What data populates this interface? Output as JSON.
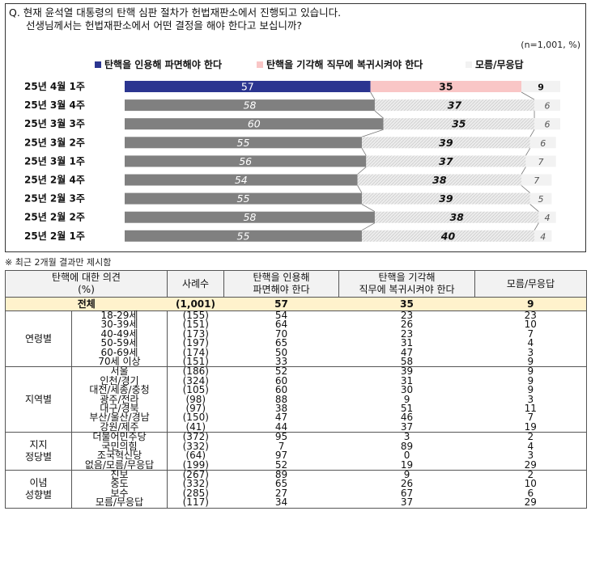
{
  "question": {
    "line1": "Q. 현재 윤석열 대통령의 탄핵 심판 절차가 헌법재판소에서 진행되고 있습니다.",
    "line2": "선생님께서는 헌법재판소에서 어떤 결정을 해야 한다고 보십니까?"
  },
  "unit_note": "(n=1,001, %)",
  "chart_data": {
    "type": "bar",
    "stacked": true,
    "orientation": "horizontal",
    "categories": [
      "25년 4월 1주",
      "25년 3월 4주",
      "25년 3월 3주",
      "25년 3월 2주",
      "25년 3월 1주",
      "25년 2월 4주",
      "25년 2월 3주",
      "25년 2월 2주",
      "25년 2월 1주"
    ],
    "series": [
      {
        "name": "탄핵을 인용해 파면해야 한다",
        "values": [
          57,
          58,
          60,
          55,
          56,
          54,
          55,
          58,
          55
        ],
        "color": "#2b3590",
        "color_past": "#808080"
      },
      {
        "name": "탄핵을 기각해 직무에 복귀시켜야 한다",
        "values": [
          35,
          37,
          35,
          39,
          37,
          38,
          39,
          38,
          40
        ],
        "color": "#f9c6c6",
        "color_past": "#e6e6e6"
      },
      {
        "name": "모름/무응답",
        "values": [
          9,
          6,
          6,
          6,
          7,
          7,
          5,
          4,
          4
        ],
        "color": "#f2f2f2",
        "color_past": "#f2f2f2"
      }
    ],
    "xlim": [
      0,
      100
    ],
    "legend_position": "top",
    "grid": false
  },
  "footnote": "※ 최근 2개월 결과만 제시함",
  "table": {
    "headers": {
      "opinion_l1": "탄핵에 대한 의견",
      "opinion_l2": "(%)",
      "n": "사례수",
      "a_l1": "탄핵을 인용해",
      "a_l2": "파면해야 한다",
      "b_l1": "탄핵을 기각해",
      "b_l2": "직무에 복귀시켜야 한다",
      "c": "모름/무응답"
    },
    "total": {
      "label": "전체",
      "n": "(1,001)",
      "a": "57",
      "b": "35",
      "c": "9"
    },
    "groups": [
      {
        "name": "연령별",
        "rows": [
          {
            "label": "18-29세",
            "n": "(155)",
            "a": "54",
            "b": "23",
            "c": "23"
          },
          {
            "label": "30-39세",
            "n": "(151)",
            "a": "64",
            "b": "26",
            "c": "10"
          },
          {
            "label": "40-49세",
            "n": "(173)",
            "a": "70",
            "b": "23",
            "c": "7"
          },
          {
            "label": "50-59세",
            "n": "(197)",
            "a": "65",
            "b": "31",
            "c": "4"
          },
          {
            "label": "60-69세",
            "n": "(174)",
            "a": "50",
            "b": "47",
            "c": "3"
          },
          {
            "label": "70세 이상",
            "n": "(151)",
            "a": "33",
            "b": "58",
            "c": "9"
          }
        ]
      },
      {
        "name": "지역별",
        "rows": [
          {
            "label": "서울",
            "n": "(186)",
            "a": "52",
            "b": "39",
            "c": "9"
          },
          {
            "label": "인천/경기",
            "n": "(324)",
            "a": "60",
            "b": "31",
            "c": "9"
          },
          {
            "label": "대전/세종/충청",
            "n": "(105)",
            "a": "60",
            "b": "30",
            "c": "9"
          },
          {
            "label": "광주/전라",
            "n": "(98)",
            "a": "88",
            "b": "9",
            "c": "3"
          },
          {
            "label": "대구/경북",
            "n": "(97)",
            "a": "38",
            "b": "51",
            "c": "11"
          },
          {
            "label": "부산/울산/경남",
            "n": "(150)",
            "a": "47",
            "b": "46",
            "c": "7"
          },
          {
            "label": "강원/제주",
            "n": "(41)",
            "a": "44",
            "b": "37",
            "c": "19"
          }
        ]
      },
      {
        "name_l1": "지지",
        "name_l2": "정당별",
        "rows": [
          {
            "label": "더불어민주당",
            "n": "(372)",
            "a": "95",
            "b": "3",
            "c": "2"
          },
          {
            "label": "국민의힘",
            "n": "(332)",
            "a": "7",
            "b": "89",
            "c": "4"
          },
          {
            "label": "조국혁신당",
            "n": "(64)",
            "a": "97",
            "b": "0",
            "c": "3"
          },
          {
            "label": "없음/모름/무응답",
            "n": "(199)",
            "a": "52",
            "b": "19",
            "c": "29"
          }
        ]
      },
      {
        "name_l1": "이념",
        "name_l2": "성향별",
        "rows": [
          {
            "label": "진보",
            "n": "(267)",
            "a": "89",
            "b": "9",
            "c": "2"
          },
          {
            "label": "중도",
            "n": "(332)",
            "a": "65",
            "b": "26",
            "c": "10"
          },
          {
            "label": "보수",
            "n": "(285)",
            "a": "27",
            "b": "67",
            "c": "6"
          },
          {
            "label": "모름/무응답",
            "n": "(117)",
            "a": "34",
            "b": "37",
            "c": "29"
          }
        ]
      }
    ]
  }
}
